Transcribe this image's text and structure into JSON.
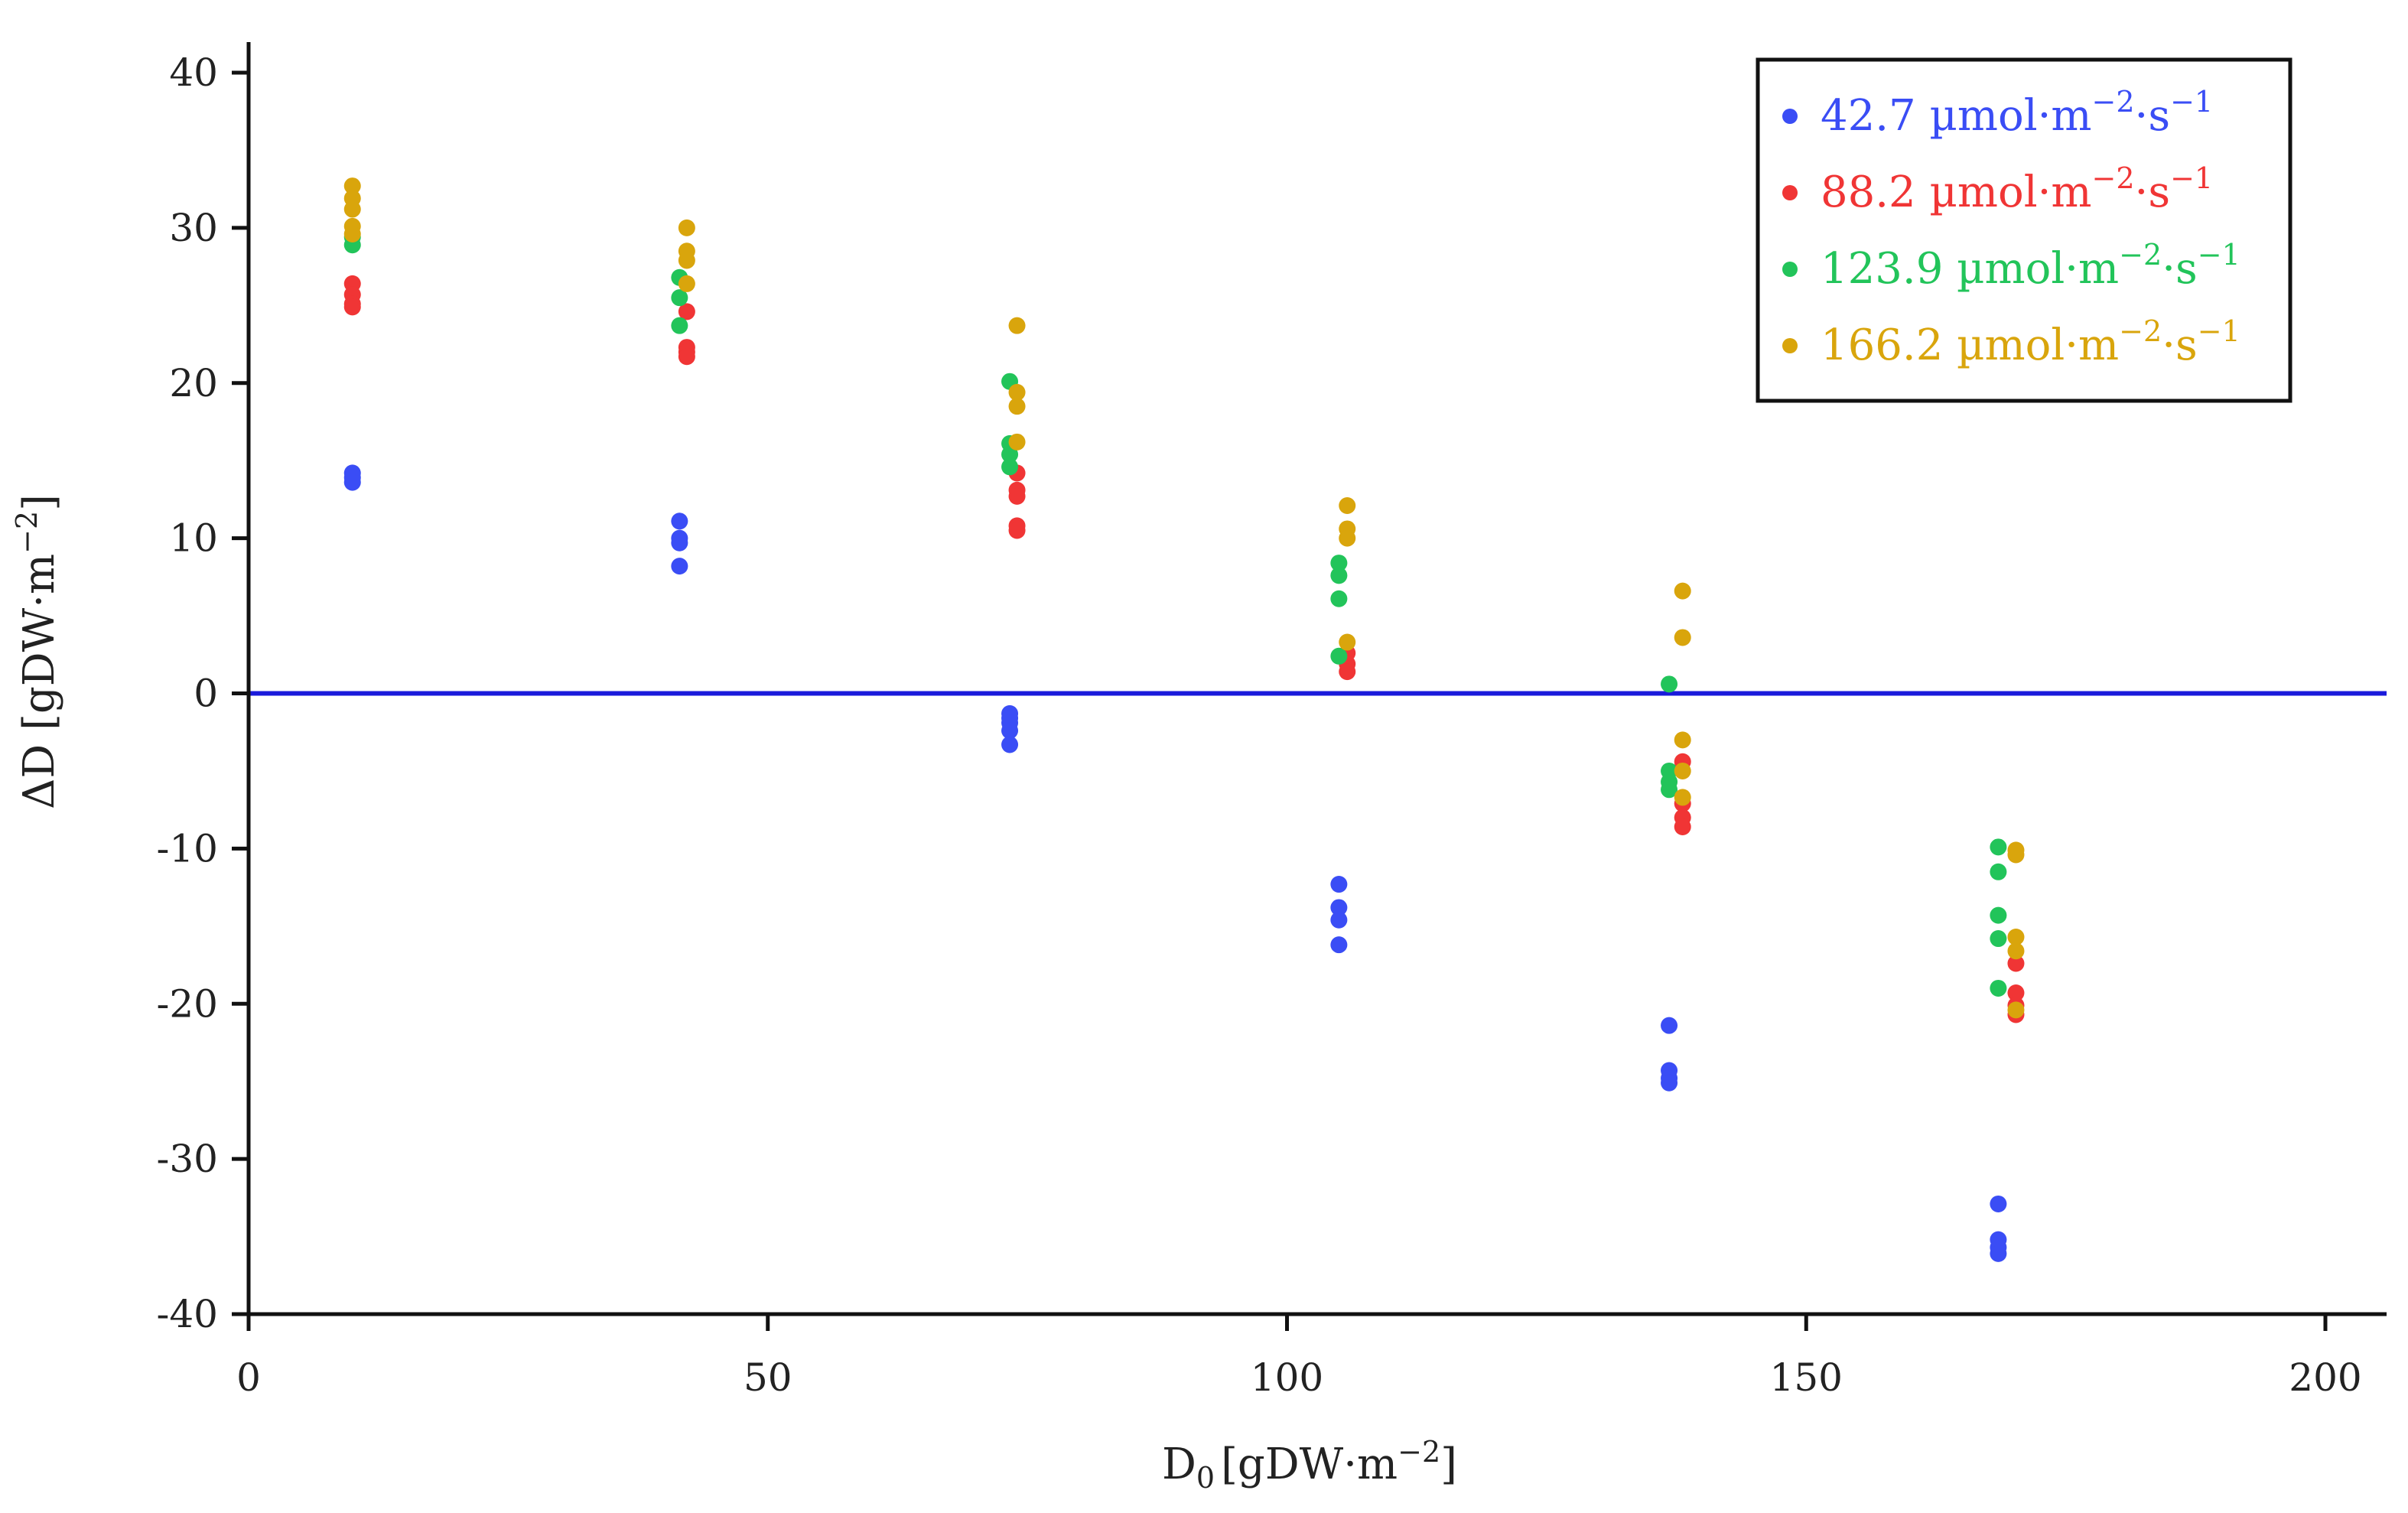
{
  "chart_data": {
    "type": "scatter",
    "title": "",
    "xlabel_main": "D",
    "xlabel_sub": "0",
    "xlabel_unit": "[gDW·m",
    "xlabel_exp": "−2",
    "xlabel_close": "]",
    "ylabel_main": "ΔD [gDW·m",
    "ylabel_exp": "−2",
    "ylabel_close": "]",
    "xlim": [
      0,
      205
    ],
    "ylim": [
      -40,
      43
    ],
    "x_ticks": [
      0,
      50,
      100,
      150,
      200
    ],
    "y_ticks": [
      40,
      30,
      20,
      10,
      0,
      -10,
      -20,
      -30,
      -40
    ],
    "x_tick_labels": [
      "0",
      "50",
      "100",
      "150",
      "200"
    ],
    "y_tick_labels": [
      "40",
      "30",
      "20",
      "10",
      "0",
      "-10",
      "-20",
      "-30",
      "-40"
    ],
    "reference_line": {
      "y": 0,
      "color": "#1a1adb"
    },
    "legend_position": "top-right",
    "series": [
      {
        "name": "42.7",
        "unit": " µmol·m",
        "exp1": "−2",
        "mid": "·s",
        "exp2": "−1",
        "color": "#3a4df5",
        "points": [
          [
            10,
            14.2
          ],
          [
            10,
            13.9
          ],
          [
            10,
            13.6
          ],
          [
            41.5,
            11.1
          ],
          [
            41.5,
            10.0
          ],
          [
            41.5,
            9.7
          ],
          [
            41.5,
            8.2
          ],
          [
            73.3,
            -1.3
          ],
          [
            73.3,
            -1.6
          ],
          [
            73.3,
            -1.9
          ],
          [
            73.3,
            -2.4
          ],
          [
            73.3,
            -3.3
          ],
          [
            105,
            -12.3
          ],
          [
            105,
            -13.8
          ],
          [
            105,
            -14.6
          ],
          [
            105,
            -16.2
          ],
          [
            136.8,
            -21.4
          ],
          [
            136.8,
            -24.3
          ],
          [
            136.8,
            -24.8
          ],
          [
            136.8,
            -25.1
          ],
          [
            168.5,
            -32.9
          ],
          [
            168.5,
            -35.2
          ],
          [
            168.5,
            -35.7
          ],
          [
            168.5,
            -36.1
          ]
        ]
      },
      {
        "name": "88.2",
        "unit": " µmol·m",
        "exp1": "−2",
        "mid": "·s",
        "exp2": "−1",
        "color": "#f03535",
        "points": [
          [
            10,
            26.4
          ],
          [
            10,
            25.7
          ],
          [
            10,
            25.1
          ],
          [
            10,
            24.9
          ],
          [
            42.2,
            24.6
          ],
          [
            42.2,
            22.3
          ],
          [
            42.2,
            22.0
          ],
          [
            42.2,
            21.7
          ],
          [
            74,
            14.2
          ],
          [
            74,
            13.1
          ],
          [
            74,
            12.7
          ],
          [
            74,
            10.8
          ],
          [
            74,
            10.5
          ],
          [
            105.8,
            2.6
          ],
          [
            105.8,
            1.9
          ],
          [
            105.8,
            1.4
          ],
          [
            138.1,
            -4.4
          ],
          [
            138.1,
            -7.1
          ],
          [
            138.1,
            -8.0
          ],
          [
            138.1,
            -8.6
          ],
          [
            170.2,
            -17.4
          ],
          [
            170.2,
            -19.3
          ],
          [
            170.2,
            -20.1
          ],
          [
            170.2,
            -20.7
          ]
        ]
      },
      {
        "name": "123.9",
        "unit": " µmol·m",
        "exp1": "−2",
        "mid": "·s",
        "exp2": "−1",
        "color": "#22c45a",
        "points": [
          [
            10,
            29.4
          ],
          [
            10,
            28.9
          ],
          [
            41.5,
            26.8
          ],
          [
            41.5,
            25.5
          ],
          [
            41.5,
            23.7
          ],
          [
            73.3,
            20.1
          ],
          [
            73.3,
            16.1
          ],
          [
            73.3,
            15.4
          ],
          [
            73.3,
            14.6
          ],
          [
            105,
            8.4
          ],
          [
            105,
            7.6
          ],
          [
            105,
            6.1
          ],
          [
            105,
            2.4
          ],
          [
            136.8,
            0.6
          ],
          [
            136.8,
            -5.0
          ],
          [
            136.8,
            -5.7
          ],
          [
            136.8,
            -6.2
          ],
          [
            168.5,
            -9.9
          ],
          [
            168.5,
            -11.5
          ],
          [
            168.5,
            -14.3
          ],
          [
            168.5,
            -15.8
          ],
          [
            168.5,
            -19.0
          ]
        ]
      },
      {
        "name": "166.2",
        "unit": " µmol·m",
        "exp1": "−2",
        "mid": "·s",
        "exp2": "−1",
        "color": "#d9a50c",
        "points": [
          [
            10,
            32.7
          ],
          [
            10,
            31.9
          ],
          [
            10,
            31.2
          ],
          [
            10,
            30.1
          ],
          [
            10,
            29.6
          ],
          [
            42.2,
            30.0
          ],
          [
            42.2,
            28.5
          ],
          [
            42.2,
            27.9
          ],
          [
            42.2,
            26.4
          ],
          [
            74,
            23.7
          ],
          [
            74,
            19.4
          ],
          [
            74,
            18.5
          ],
          [
            74,
            16.2
          ],
          [
            105.8,
            12.1
          ],
          [
            105.8,
            10.6
          ],
          [
            105.8,
            10.0
          ],
          [
            105.8,
            3.3
          ],
          [
            138.1,
            6.6
          ],
          [
            138.1,
            3.6
          ],
          [
            138.1,
            -3.0
          ],
          [
            138.1,
            -5.0
          ],
          [
            138.1,
            -6.7
          ],
          [
            170.2,
            -10.1
          ],
          [
            170.2,
            -10.4
          ],
          [
            170.2,
            -15.7
          ],
          [
            170.2,
            -16.6
          ],
          [
            170.2,
            -20.4
          ]
        ]
      }
    ]
  }
}
